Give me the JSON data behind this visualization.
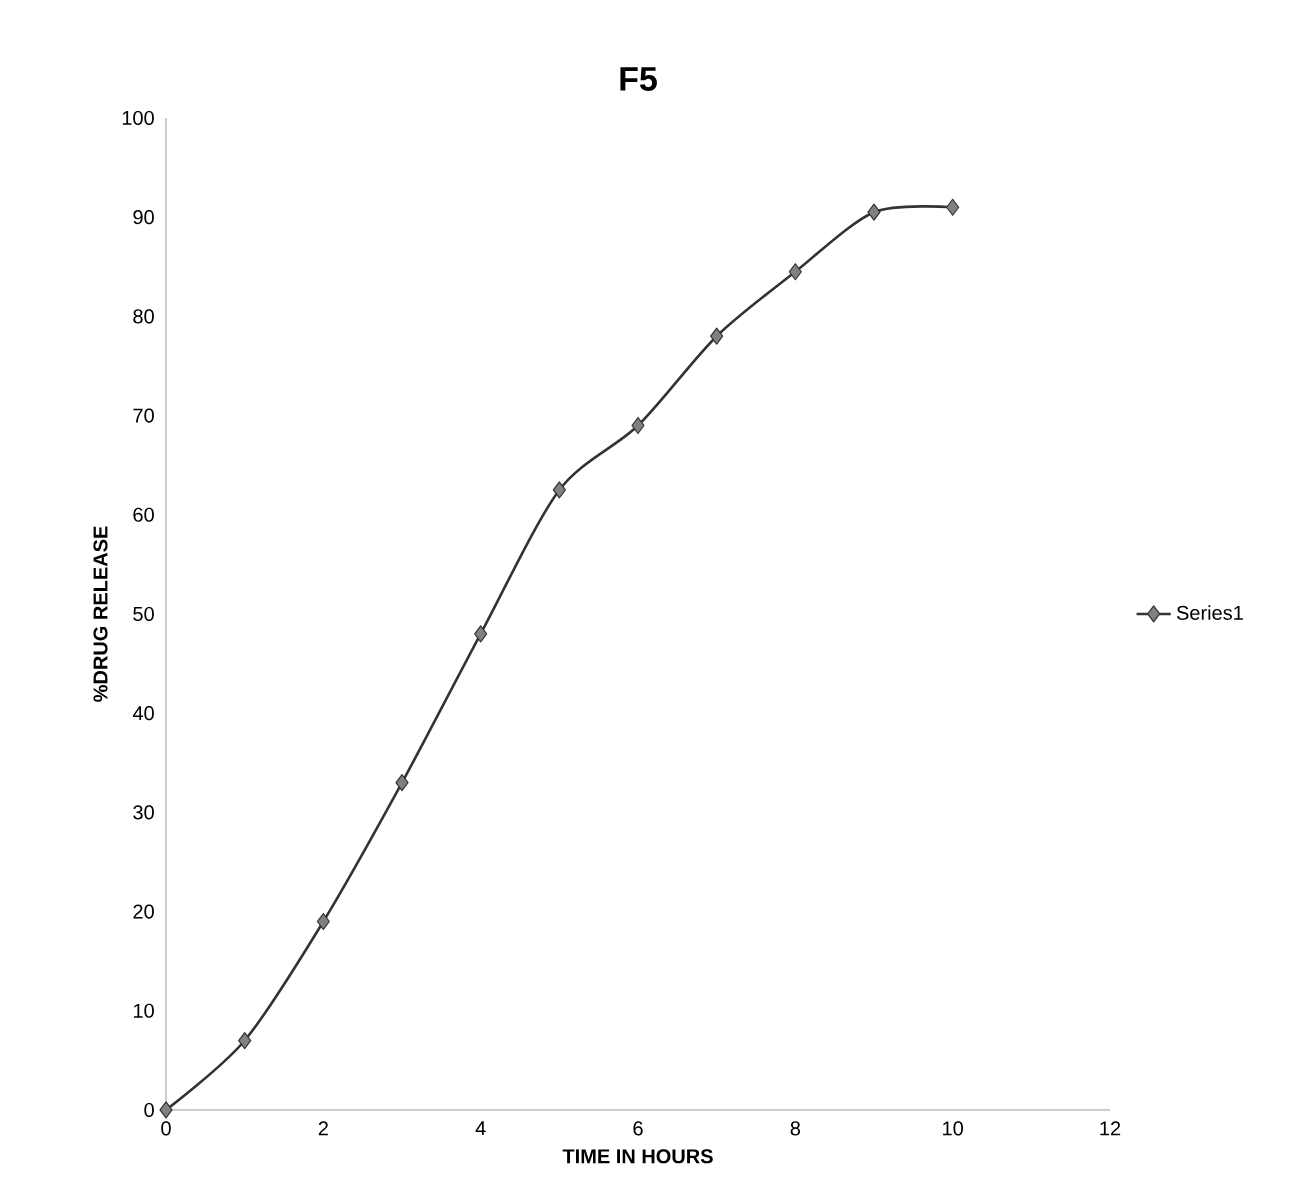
{
  "chart_data": {
    "type": "line",
    "title": "F5",
    "xlabel": "TIME IN HOURS",
    "ylabel": "%DRUG RELEASE",
    "x": [
      0,
      1,
      2,
      3,
      4,
      5,
      6,
      7,
      8,
      9,
      10
    ],
    "series": [
      {
        "name": "Series1",
        "color": "#333333",
        "values": [
          0,
          7,
          19,
          33,
          48,
          62.5,
          69,
          78,
          84.5,
          90.5,
          91
        ]
      }
    ],
    "xlim": [
      0,
      12
    ],
    "xticks": [
      0,
      2,
      4,
      6,
      8,
      10,
      12
    ],
    "ylim": [
      0,
      100
    ],
    "yticks": [
      0,
      10,
      20,
      30,
      40,
      50,
      60,
      70,
      80,
      90,
      100
    ],
    "grid": false,
    "legend": "right",
    "marker": "diamond",
    "line_style": "solid"
  }
}
